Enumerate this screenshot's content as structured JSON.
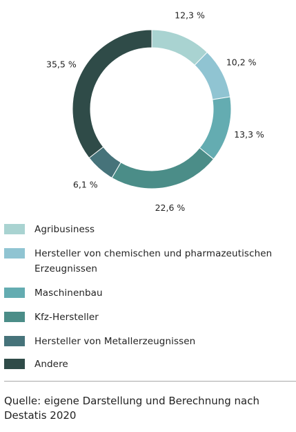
{
  "chart_data": {
    "type": "pie",
    "donut": true,
    "categories": [
      "Agribusiness",
      "Hersteller von chemischen und pharmazeutischen Erzeugnissen",
      "Maschinenbau",
      "Kfz-Hersteller",
      "Hersteller von Metallerzeugnissen",
      "Andere"
    ],
    "values": [
      12.3,
      10.2,
      13.3,
      22.6,
      6.1,
      35.5
    ],
    "value_labels": [
      "12,3 %",
      "10,2 %",
      "13,3 %",
      "22,6 %",
      "6,1 %",
      "35,5 %"
    ],
    "colors": [
      "#a9d3d1",
      "#90c4d2",
      "#64acb1",
      "#4b8d88",
      "#46737a",
      "#2f4b48"
    ],
    "legend": {
      "placement": "bottom"
    }
  },
  "source": "Quelle: eigene Darstellung und Berechnung nach Destatis 2020"
}
